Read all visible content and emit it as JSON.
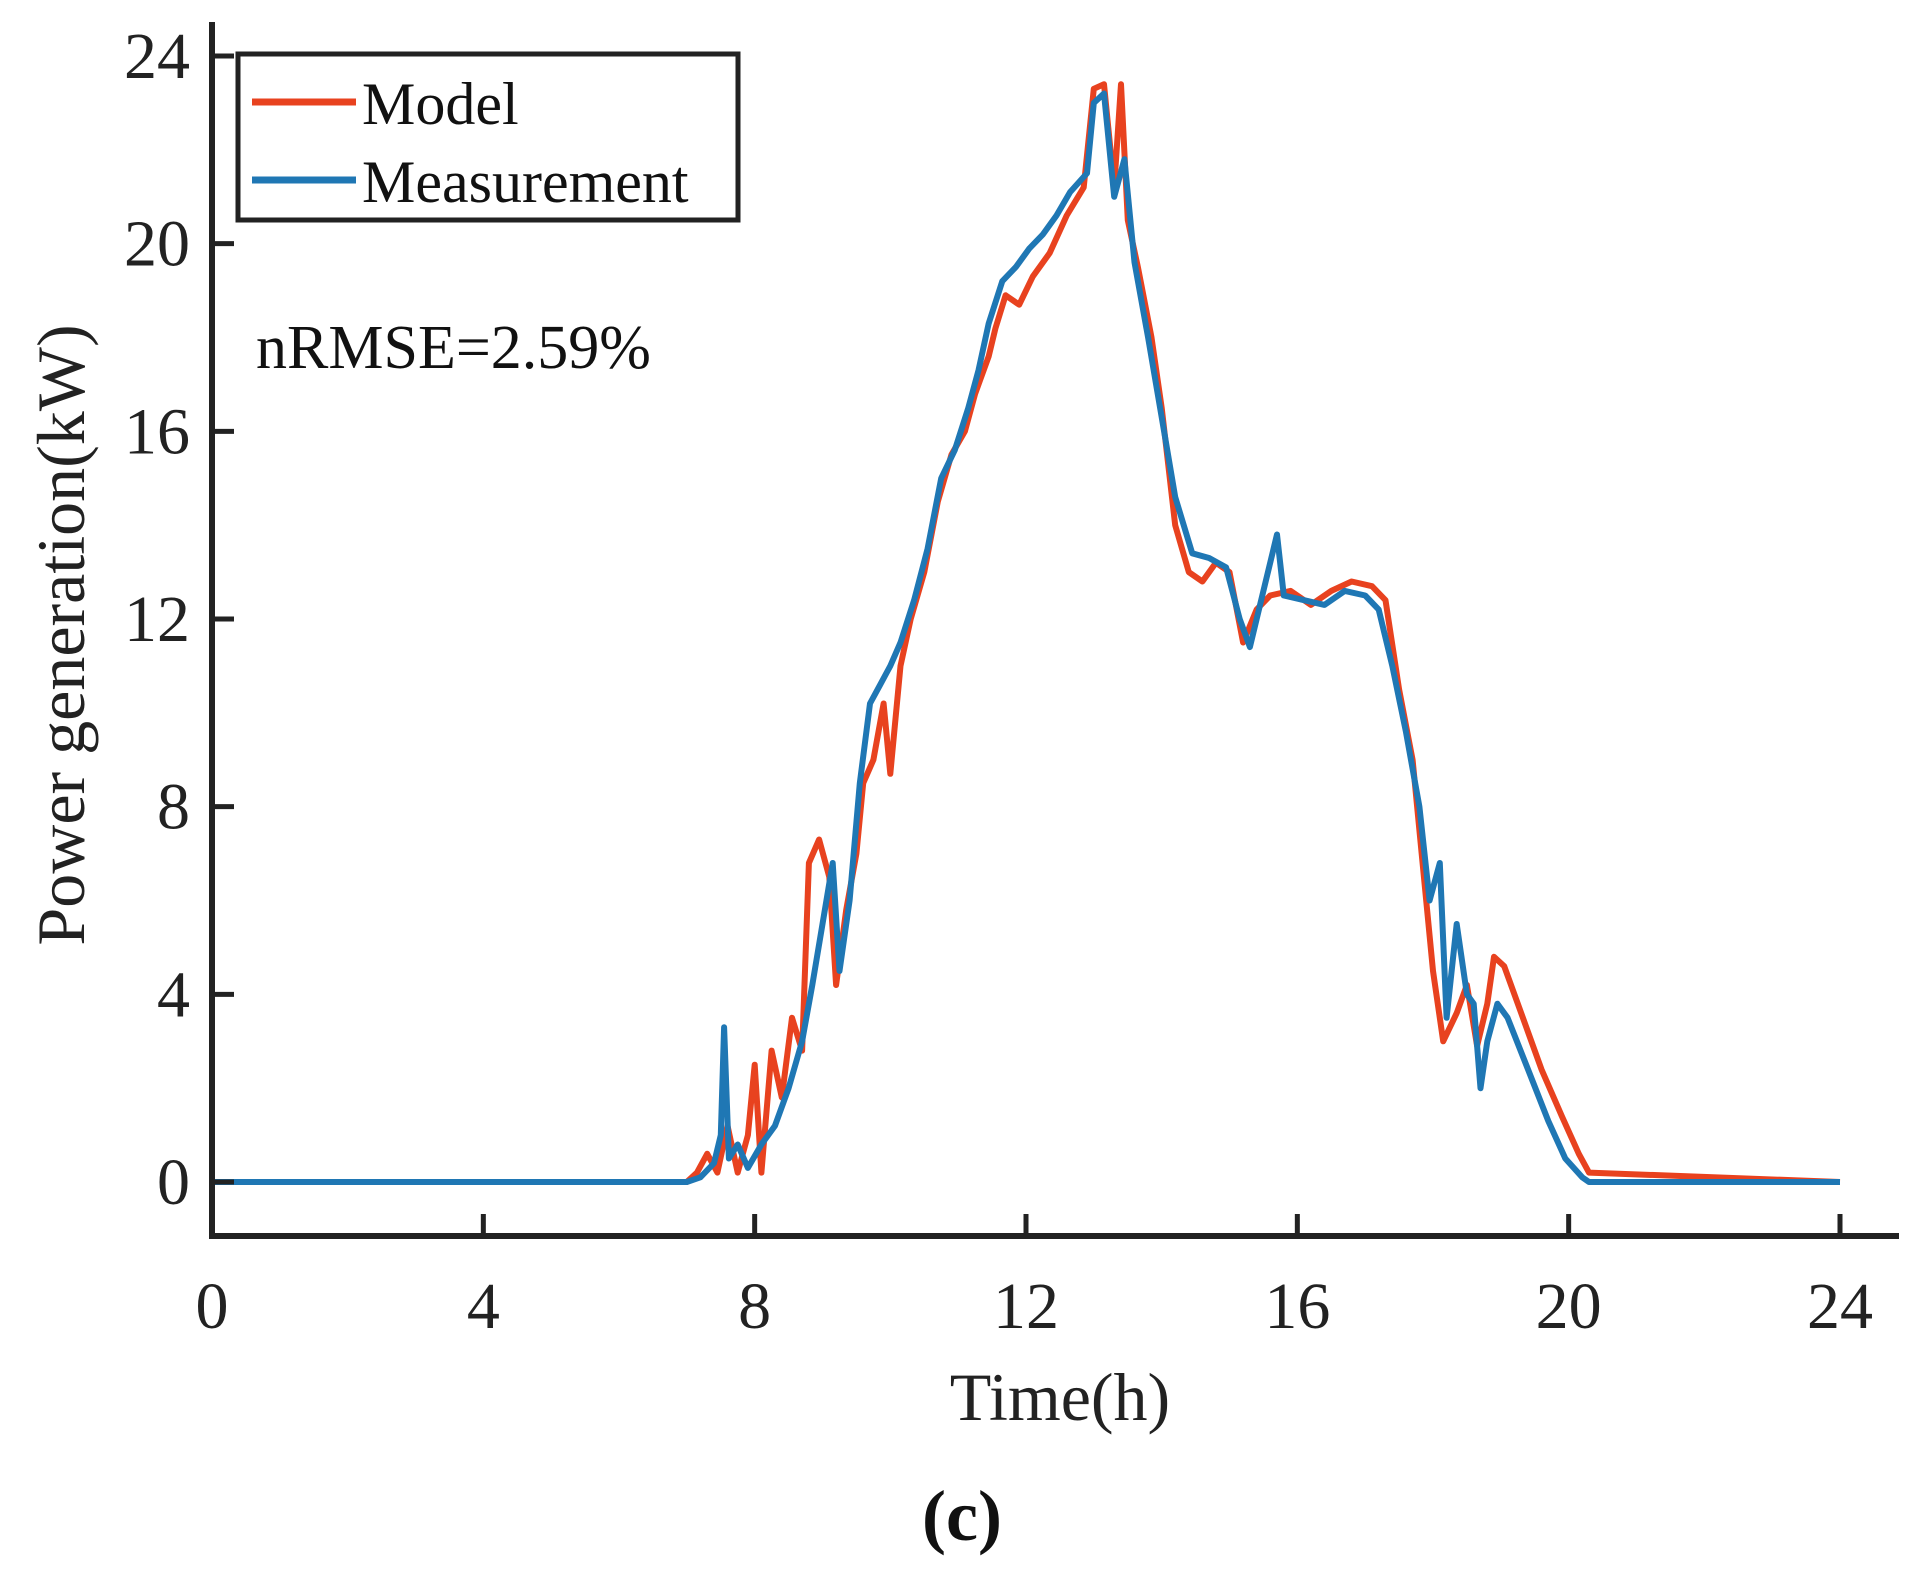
{
  "chart_data": {
    "type": "line",
    "title": "",
    "xlabel": "Time(h)",
    "ylabel": "Power generation(kW)",
    "xlim": [
      0,
      24
    ],
    "ylim": [
      -1.5,
      24.5
    ],
    "xticks": [
      0,
      4,
      8,
      12,
      16,
      20,
      24
    ],
    "yticks": [
      0,
      4,
      8,
      12,
      16,
      20,
      24
    ],
    "xtick_labels": [
      "0",
      "4",
      "8",
      "12",
      "16",
      "20",
      "24"
    ],
    "ytick_labels": [
      "0",
      "4",
      "8",
      "12",
      "16",
      "20",
      "24"
    ],
    "grid": false,
    "legend_position": "top-left",
    "annotation": "nRMSE=2.59%",
    "panel_label": "(c)",
    "series": [
      {
        "name": "Model",
        "color": "#e8421f",
        "points": [
          [
            0,
            0
          ],
          [
            7.0,
            0
          ],
          [
            7.15,
            0.2
          ],
          [
            7.3,
            0.6
          ],
          [
            7.45,
            0.2
          ],
          [
            7.6,
            1.2
          ],
          [
            7.75,
            0.2
          ],
          [
            7.9,
            1.0
          ],
          [
            8.0,
            2.5
          ],
          [
            8.1,
            0.2
          ],
          [
            8.25,
            2.8
          ],
          [
            8.4,
            1.8
          ],
          [
            8.55,
            3.5
          ],
          [
            8.7,
            2.8
          ],
          [
            8.8,
            6.8
          ],
          [
            8.95,
            7.3
          ],
          [
            9.1,
            6.5
          ],
          [
            9.2,
            4.2
          ],
          [
            9.35,
            5.8
          ],
          [
            9.5,
            7.0
          ],
          [
            9.6,
            8.5
          ],
          [
            9.75,
            9.0
          ],
          [
            9.9,
            10.2
          ],
          [
            10.0,
            8.7
          ],
          [
            10.15,
            11.0
          ],
          [
            10.3,
            12.0
          ],
          [
            10.5,
            13.0
          ],
          [
            10.7,
            14.5
          ],
          [
            10.9,
            15.5
          ],
          [
            11.1,
            16.0
          ],
          [
            11.25,
            16.8
          ],
          [
            11.45,
            17.6
          ],
          [
            11.55,
            18.2
          ],
          [
            11.7,
            18.9
          ],
          [
            11.9,
            18.7
          ],
          [
            12.1,
            19.3
          ],
          [
            12.35,
            19.8
          ],
          [
            12.6,
            20.6
          ],
          [
            12.85,
            21.2
          ],
          [
            13.0,
            23.3
          ],
          [
            13.15,
            23.4
          ],
          [
            13.3,
            21.2
          ],
          [
            13.4,
            23.4
          ],
          [
            13.5,
            20.5
          ],
          [
            13.65,
            19.5
          ],
          [
            13.85,
            18.0
          ],
          [
            14.0,
            16.5
          ],
          [
            14.2,
            14.0
          ],
          [
            14.4,
            13.0
          ],
          [
            14.6,
            12.8
          ],
          [
            14.8,
            13.2
          ],
          [
            15.0,
            13.0
          ],
          [
            15.2,
            11.5
          ],
          [
            15.4,
            12.2
          ],
          [
            15.6,
            12.5
          ],
          [
            15.9,
            12.6
          ],
          [
            16.2,
            12.3
          ],
          [
            16.5,
            12.6
          ],
          [
            16.8,
            12.8
          ],
          [
            17.1,
            12.7
          ],
          [
            17.3,
            12.4
          ],
          [
            17.5,
            10.5
          ],
          [
            17.7,
            9.0
          ],
          [
            17.9,
            6.0
          ],
          [
            18.0,
            4.5
          ],
          [
            18.15,
            3.0
          ],
          [
            18.35,
            3.6
          ],
          [
            18.5,
            4.2
          ],
          [
            18.65,
            2.9
          ],
          [
            18.8,
            3.8
          ],
          [
            18.9,
            4.8
          ],
          [
            19.05,
            4.6
          ],
          [
            19.3,
            3.6
          ],
          [
            19.6,
            2.4
          ],
          [
            19.9,
            1.4
          ],
          [
            20.15,
            0.6
          ],
          [
            20.3,
            0.2
          ],
          [
            24,
            0
          ]
        ]
      },
      {
        "name": "Measurement",
        "color": "#1f77b4",
        "points": [
          [
            0,
            0
          ],
          [
            7.0,
            0
          ],
          [
            7.2,
            0.1
          ],
          [
            7.4,
            0.4
          ],
          [
            7.5,
            1.0
          ],
          [
            7.55,
            3.3
          ],
          [
            7.62,
            0.5
          ],
          [
            7.75,
            0.8
          ],
          [
            7.9,
            0.3
          ],
          [
            8.1,
            0.8
          ],
          [
            8.3,
            1.2
          ],
          [
            8.5,
            2.0
          ],
          [
            8.7,
            3.0
          ],
          [
            8.85,
            4.2
          ],
          [
            9.0,
            5.5
          ],
          [
            9.15,
            6.8
          ],
          [
            9.25,
            4.5
          ],
          [
            9.4,
            6.0
          ],
          [
            9.55,
            8.5
          ],
          [
            9.7,
            10.2
          ],
          [
            9.85,
            10.6
          ],
          [
            10.0,
            11.0
          ],
          [
            10.15,
            11.5
          ],
          [
            10.35,
            12.4
          ],
          [
            10.55,
            13.5
          ],
          [
            10.75,
            15.0
          ],
          [
            10.95,
            15.6
          ],
          [
            11.15,
            16.5
          ],
          [
            11.3,
            17.3
          ],
          [
            11.45,
            18.3
          ],
          [
            11.65,
            19.2
          ],
          [
            11.85,
            19.5
          ],
          [
            12.05,
            19.9
          ],
          [
            12.25,
            20.2
          ],
          [
            12.45,
            20.6
          ],
          [
            12.65,
            21.1
          ],
          [
            12.9,
            21.5
          ],
          [
            13.0,
            23.0
          ],
          [
            13.15,
            23.2
          ],
          [
            13.3,
            21.0
          ],
          [
            13.45,
            21.8
          ],
          [
            13.6,
            19.6
          ],
          [
            13.8,
            18.0
          ],
          [
            14.0,
            16.3
          ],
          [
            14.2,
            14.6
          ],
          [
            14.45,
            13.4
          ],
          [
            14.7,
            13.3
          ],
          [
            14.95,
            13.1
          ],
          [
            15.15,
            12.0
          ],
          [
            15.3,
            11.4
          ],
          [
            15.5,
            12.6
          ],
          [
            15.7,
            13.8
          ],
          [
            15.8,
            12.5
          ],
          [
            16.1,
            12.4
          ],
          [
            16.4,
            12.3
          ],
          [
            16.7,
            12.6
          ],
          [
            17.0,
            12.5
          ],
          [
            17.2,
            12.2
          ],
          [
            17.4,
            11.0
          ],
          [
            17.6,
            9.6
          ],
          [
            17.8,
            8.0
          ],
          [
            17.95,
            6.0
          ],
          [
            18.1,
            6.8
          ],
          [
            18.2,
            3.5
          ],
          [
            18.35,
            5.5
          ],
          [
            18.5,
            4.0
          ],
          [
            18.6,
            3.8
          ],
          [
            18.7,
            2.0
          ],
          [
            18.8,
            3.0
          ],
          [
            18.95,
            3.8
          ],
          [
            19.1,
            3.5
          ],
          [
            19.4,
            2.4
          ],
          [
            19.7,
            1.3
          ],
          [
            19.95,
            0.5
          ],
          [
            20.2,
            0.1
          ],
          [
            20.3,
            0
          ],
          [
            24,
            0
          ]
        ]
      }
    ]
  }
}
